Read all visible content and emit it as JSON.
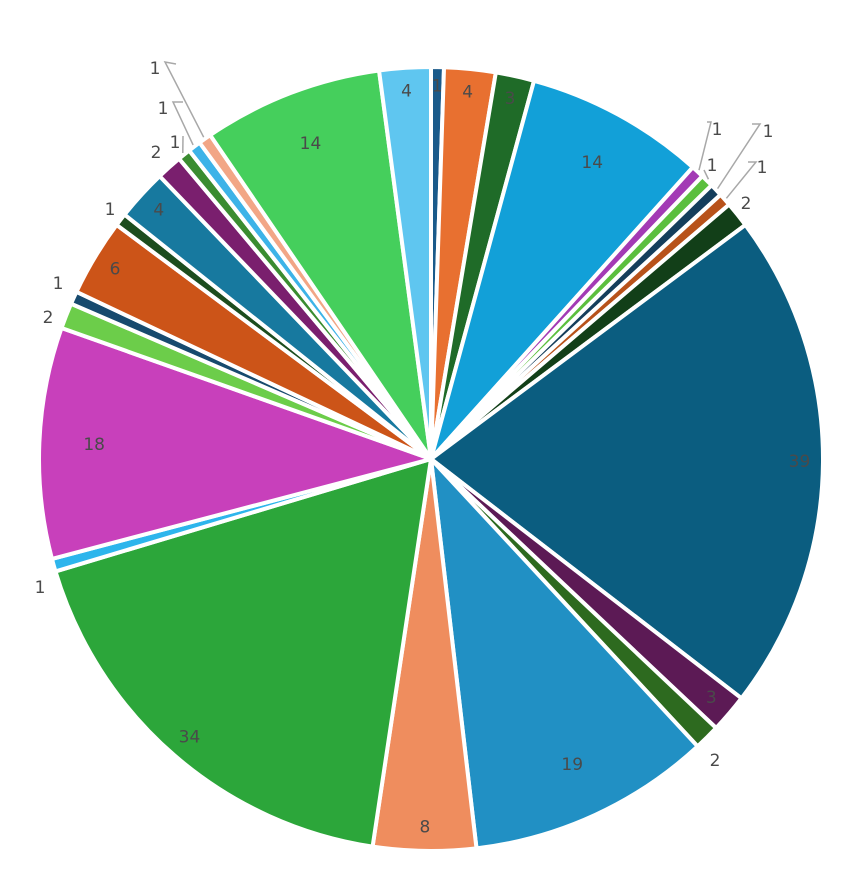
{
  "chart_data": {
    "type": "pie",
    "title": "",
    "slices": [
      {
        "value": 1,
        "label": "1",
        "color": "#1a5a8a"
      },
      {
        "value": 4,
        "label": "4",
        "color": "#e87030"
      },
      {
        "value": 3,
        "label": "3",
        "color": "#1f6b28"
      },
      {
        "value": 14,
        "label": "14",
        "color": "#12a0d8"
      },
      {
        "value": 1,
        "label": "1",
        "color": "#a33ab5"
      },
      {
        "value": 1,
        "label": "1",
        "color": "#5bbf3e"
      },
      {
        "value": 1,
        "label": "1",
        "color": "#153e5c"
      },
      {
        "value": 1,
        "label": "1",
        "color": "#b8521a"
      },
      {
        "value": 2,
        "label": "2",
        "color": "#123f18"
      },
      {
        "value": 39,
        "label": "39",
        "color": "#0b5d80"
      },
      {
        "value": 3,
        "label": "3",
        "color": "#5c1a55"
      },
      {
        "value": 2,
        "label": "2",
        "color": "#2d6a1f"
      },
      {
        "value": 19,
        "label": "19",
        "color": "#2190c4"
      },
      {
        "value": 8,
        "label": "8",
        "color": "#ef8d5e"
      },
      {
        "value": 34,
        "label": "34",
        "color": "#2ca63a"
      },
      {
        "value": 1,
        "label": "1",
        "color": "#2db5ec"
      },
      {
        "value": 18,
        "label": "18",
        "color": "#c840bb"
      },
      {
        "value": 2,
        "label": "2",
        "color": "#6ccd4a"
      },
      {
        "value": 1,
        "label": "1",
        "color": "#174a6e"
      },
      {
        "value": 6,
        "label": "6",
        "color": "#cc5418"
      },
      {
        "value": 1,
        "label": "1",
        "color": "#1c4d1e"
      },
      {
        "value": 4,
        "label": "4",
        "color": "#17799f"
      },
      {
        "value": 2,
        "label": "2",
        "color": "#7a1f6e"
      },
      {
        "value": 1,
        "label": "1",
        "color": "#3a8c30"
      },
      {
        "value": 1,
        "label": "1",
        "color": "#3db3e8"
      },
      {
        "value": 1,
        "label": "1",
        "color": "#f2a686"
      },
      {
        "value": 14,
        "label": "14",
        "color": "#45cf5c"
      },
      {
        "value": 4,
        "label": "4",
        "color": "#5fc6f0"
      }
    ],
    "legend": "none"
  }
}
